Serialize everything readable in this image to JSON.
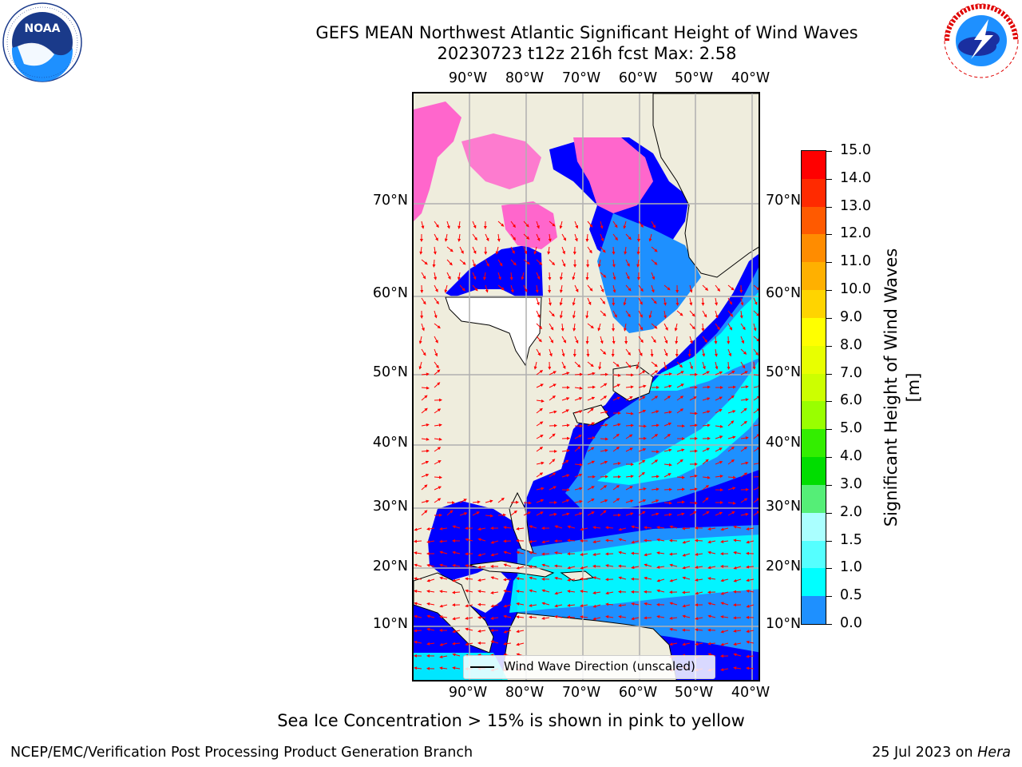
{
  "header": {
    "title_line1": "GEFS MEAN Northwest Atlantic Significant Height of Wind Waves",
    "title_line2": "20230723 t12z 216h fcst   Max: 2.58"
  },
  "logos": {
    "left": {
      "name": "noaa-logo",
      "text": "NOAA",
      "ring_text": "NATIONAL OCEANIC AND ATMOSPHERIC ADMINISTRATION · U.S. DEPARTMENT OF COMMERCE"
    },
    "right": {
      "name": "nws-logo",
      "ring_text": "NATIONAL WEATHER SERVICE"
    }
  },
  "map": {
    "lon_ticks": [
      "90°W",
      "80°W",
      "70°W",
      "60°W",
      "50°W",
      "40°W"
    ],
    "lat_ticks": [
      "70°N",
      "60°N",
      "50°N",
      "40°N",
      "30°N",
      "20°N",
      "10°N"
    ],
    "legend_label": "Wind Wave Direction (unscaled)",
    "colors": {
      "land": "#efeddd",
      "ocean_low": "#0000ff",
      "ocean_mid": "#1e90ff",
      "ocean_high": "#00ffff",
      "ice": "#ff66cc",
      "arrows": "#ff0000",
      "grid": "#b0b0b0"
    }
  },
  "colorbar": {
    "title": "Significant Height of Wind Waves [m]",
    "labels": [
      "15.0",
      "14.0",
      "13.0",
      "12.0",
      "11.0",
      "10.0",
      "9.0",
      "8.0",
      "7.0",
      "6.0",
      "5.0",
      "4.0",
      "3.0",
      "2.0",
      "1.5",
      "1.0",
      "0.5",
      "0.0"
    ],
    "colors": [
      "#ff0000",
      "#ff2a00",
      "#ff5a00",
      "#ff8c00",
      "#ffb000",
      "#ffd400",
      "#ffff00",
      "#e8ff00",
      "#ccff00",
      "#99ff00",
      "#33ee00",
      "#00dd00",
      "#55ee77",
      "#aaffff",
      "#55ffff",
      "#00ffff",
      "#1e90ff",
      "#0000ff"
    ]
  },
  "footer": {
    "note": "Sea Ice Concentration > 15% is shown in pink to yellow",
    "credit_left": "NCEP/EMC/Verification Post Processing Product Generation Branch",
    "credit_right_prefix": "25 Jul 2023 on ",
    "credit_right_host": "Hera"
  }
}
